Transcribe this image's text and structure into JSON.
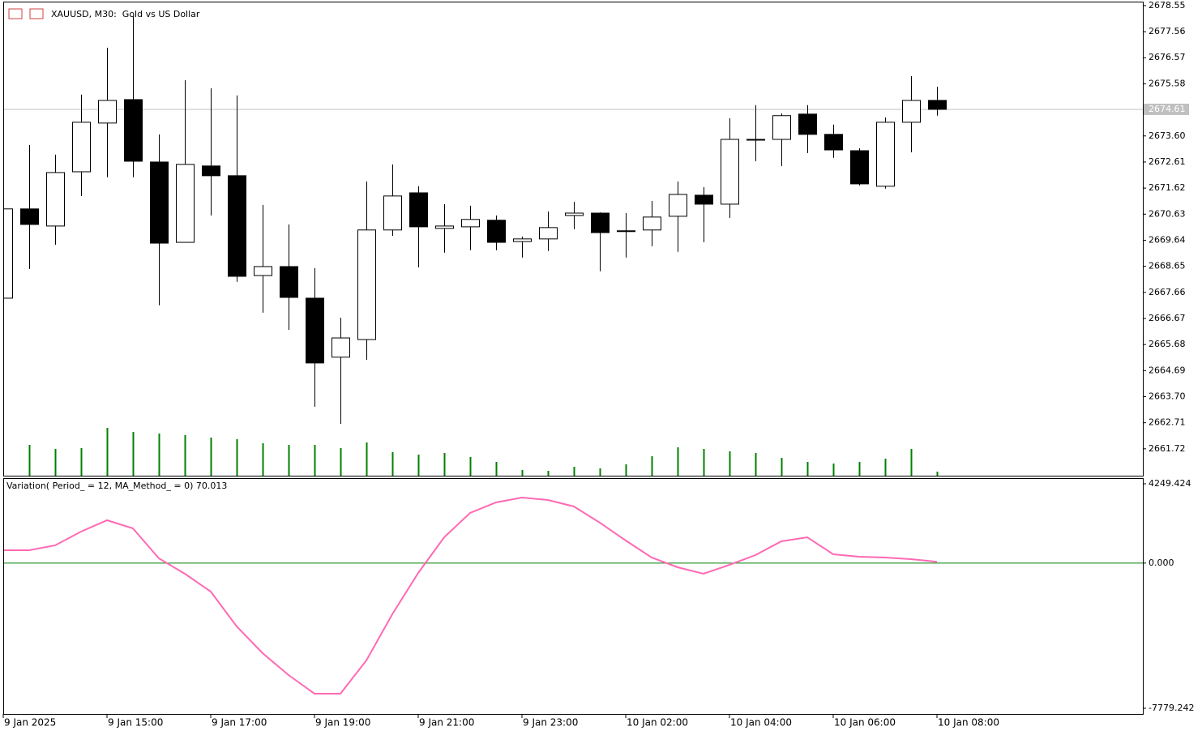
{
  "chart_data": [
    {
      "type": "candlestick",
      "title": "XAUUSD, M30:  Gold vs US Dollar",
      "categories": [
        "9 Jan 2025",
        null,
        null,
        null,
        "9 Jan 15:00",
        null,
        null,
        null,
        "9 Jan 17:00",
        null,
        null,
        null,
        "9 Jan 19:00",
        null,
        null,
        null,
        "9 Jan 21:00",
        null,
        null,
        null,
        "9 Jan 23:00",
        null,
        null,
        null,
        "10 Jan 02:00",
        null,
        null,
        null,
        "10 Jan 04:00",
        null,
        null,
        null,
        "10 Jan 06:00",
        null,
        null,
        null,
        "10 Jan 08:00"
      ],
      "open": [
        2667.44,
        2670.83,
        2670.18,
        2672.24,
        2674.09,
        2674.98,
        2672.61,
        2669.56,
        2672.46,
        2672.09,
        2668.3,
        2668.64,
        2667.44,
        2665.2,
        2665.87,
        2670.03,
        2671.44,
        2670.09,
        2670.15,
        2670.4,
        2669.59,
        2669.69,
        2670.58,
        2670.67,
        2670,
        2670.03,
        2670.55,
        2671.35,
        2671.01,
        2673.44,
        2673.47,
        2674.43,
        2673.66,
        2673.04,
        2671.69,
        2674.12,
        2674.95
      ],
      "high": [
        2670.83,
        2673.26,
        2672.89,
        2675.17,
        2676.95,
        2678.15,
        2673.66,
        2675.72,
        2675.41,
        2675.14,
        2670.98,
        2670.24,
        2668.58,
        2666.7,
        2671.87,
        2672.52,
        2671.69,
        2671.01,
        2670.95,
        2670.58,
        2669.78,
        2670.73,
        2671.1,
        2670.7,
        2670.67,
        2671.13,
        2671.87,
        2671.66,
        2674.27,
        2674.77,
        2674.46,
        2674.77,
        2674.03,
        2673.13,
        2674.3,
        2675.87,
        2675.47
      ],
      "low": [
        2667.44,
        2668.55,
        2669.47,
        2671.32,
        2672.03,
        2672.03,
        2667.17,
        2669.56,
        2670.58,
        2668.06,
        2666.89,
        2666.24,
        2663.32,
        2662.67,
        2665.1,
        2669.81,
        2668.61,
        2669.17,
        2669.26,
        2669.26,
        2668.98,
        2669.23,
        2670.06,
        2668.46,
        2668.98,
        2669.41,
        2669.2,
        2669.56,
        2670.49,
        2672.64,
        2672.46,
        2672.95,
        2672.77,
        2671.72,
        2671.6,
        2672.98,
        2674.37
      ],
      "close": [
        2670.83,
        2670.24,
        2672.21,
        2674.12,
        2674.95,
        2672.64,
        2669.53,
        2672.52,
        2672.09,
        2668.27,
        2668.64,
        2667.47,
        2664.98,
        2665.93,
        2670.03,
        2671.32,
        2670.15,
        2670.18,
        2670.43,
        2669.56,
        2669.69,
        2670.12,
        2670.67,
        2669.93,
        2669.97,
        2670.52,
        2671.38,
        2671.01,
        2673.47,
        2673.47,
        2674.37,
        2673.66,
        2673.07,
        2671.78,
        2674.12,
        2674.95,
        2674.61
      ],
      "up_color": "#ffffff",
      "down_color": "#000000",
      "ylim": [
        2660.7,
        2678.67
      ],
      "yticks": [
        2678.55,
        2677.56,
        2676.57,
        2675.58,
        {
          "value": 2673.6,
          "label": "2673.60"
        },
        2672.61,
        2671.62,
        2670.63,
        2669.64,
        2668.65,
        2667.66,
        2666.67,
        2665.68,
        2664.69,
        {
          "value": 2663.7,
          "label": "2663.70"
        },
        2662.71,
        2661.72
      ],
      "current_price": 2674.61
    },
    {
      "type": "bar",
      "color": "#008000",
      "ylim": [
        0,
        584
      ],
      "values": [
        null,
        38,
        33,
        34,
        59,
        54,
        52,
        50,
        47,
        45,
        40,
        38,
        38,
        34,
        41,
        29,
        26,
        28,
        23,
        17,
        7,
        6,
        11,
        9,
        14,
        24,
        35,
        33,
        30,
        28,
        22,
        17,
        15,
        17,
        21,
        33,
        5
      ]
    },
    {
      "type": "line",
      "title": "Variation( Period_ = 12, MA_Method_ = 0) 70.013",
      "color": "#ff69b4",
      "zero_color": "#008000",
      "values": [
        689,
        689,
        950,
        1688,
        2296,
        1861,
        254,
        -571,
        -1526,
        -3393,
        -4826,
        -5999,
        -6997,
        -6997,
        -5217,
        -2742,
        -527,
        1384,
        2687,
        3251,
        3512,
        3382,
        3034,
        2166,
        1210,
        298,
        -223,
        -571,
        -93,
        428,
        1167,
        1384,
        472,
        341,
        300,
        211,
        70.013
      ],
      "ylim": [
        -7779.242,
        4249.424
      ],
      "yticks": [
        4249.424,
        {
          "value": 0,
          "label": "0.000"
        },
        -7779.242
      ]
    }
  ]
}
